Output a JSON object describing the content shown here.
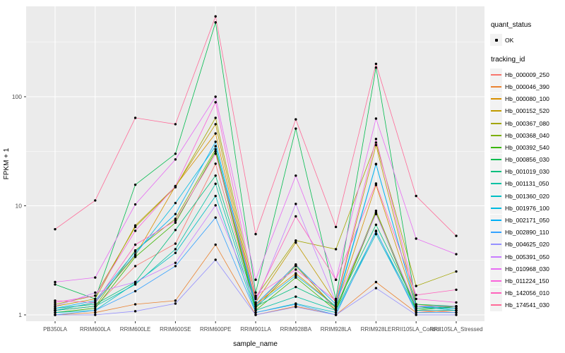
{
  "figure": {
    "y_axis_label": "FPKM + 1",
    "x_axis_label": "sample_name",
    "legend_quant_title": "quant_status",
    "legend_quant_item": "OK",
    "legend_tracking_title": "tracking_id",
    "colors": {
      "panel_bg": "#EBEBEB",
      "grid": "#FFFFFF",
      "tick_text": "#4D4D4D",
      "point": "#000000",
      "legend_key_bg": "#F2F2F2"
    }
  },
  "chart_data": {
    "type": "line",
    "title": "",
    "xlabel": "sample_name",
    "ylabel": "FPKM + 1",
    "y_scale": "log10",
    "ylim": [
      1,
      600
    ],
    "y_ticks": [
      1,
      10,
      100
    ],
    "grid": true,
    "legend_position": "right",
    "marker": "point",
    "marker_legend": {
      "title": "quant_status",
      "items": [
        "OK"
      ]
    },
    "series_legend_title": "tracking_id",
    "categories": [
      "PB350LA",
      "RRIM600LA",
      "RRIM600LE",
      "RRIM600SE",
      "RRIM600PE",
      "RRIM901LA",
      "RRIM928BA",
      "RRIM928LA",
      "RRIM928LE",
      "RRII105LA_Control",
      "RRII105LA_Stressed"
    ],
    "series": [
      {
        "name": "Hb_000009_250",
        "color": "#F8766D",
        "values": [
          1.1,
          1.2,
          2.8,
          4.5,
          24.3,
          1.2,
          2.9,
          1.1,
          8.7,
          1.1,
          1.05
        ]
      },
      {
        "name": "Hb_000046_390",
        "color": "#EA8331",
        "values": [
          1.0,
          1.05,
          1.25,
          1.35,
          4.4,
          1.0,
          1.2,
          1.0,
          2.0,
          1.05,
          1.1
        ]
      },
      {
        "name": "Hb_000080_100",
        "color": "#D89000",
        "values": [
          1.1,
          1.3,
          3.5,
          15.2,
          46.0,
          1.25,
          2.4,
          1.2,
          15.5,
          1.2,
          1.1
        ]
      },
      {
        "name": "Hb_000152_520",
        "color": "#C09B00",
        "values": [
          1.2,
          1.4,
          6.6,
          15.0,
          56.0,
          1.3,
          4.6,
          1.3,
          36.0,
          1.25,
          1.15
        ]
      },
      {
        "name": "Hb_000367_080",
        "color": "#A3A500",
        "values": [
          1.25,
          1.5,
          6.4,
          14.8,
          64.0,
          1.45,
          4.8,
          4.0,
          38.0,
          1.84,
          2.5
        ]
      },
      {
        "name": "Hb_000368_040",
        "color": "#7CAE00",
        "values": [
          1.1,
          1.2,
          3.9,
          7.6,
          33.0,
          1.15,
          2.8,
          1.15,
          9.0,
          1.15,
          1.2
        ]
      },
      {
        "name": "Hb_000392_540",
        "color": "#39B600",
        "values": [
          1.05,
          1.15,
          3.4,
          7.0,
          31.5,
          1.1,
          2.2,
          1.1,
          8.6,
          1.1,
          1.2
        ]
      },
      {
        "name": "Hb_000856_030",
        "color": "#00BB4E",
        "values": [
          1.9,
          1.4,
          15.6,
          30.0,
          480,
          1.6,
          51.0,
          1.4,
          185,
          1.25,
          1.2
        ]
      },
      {
        "name": "Hb_001019_030",
        "color": "#00BF7D",
        "values": [
          1.15,
          1.25,
          2.0,
          6.0,
          18.9,
          1.2,
          1.8,
          1.2,
          6.7,
          1.2,
          1.2
        ]
      },
      {
        "name": "Hb_001131_050",
        "color": "#00C1A3",
        "values": [
          1.1,
          1.2,
          1.9,
          4.0,
          15.9,
          1.1,
          1.47,
          1.1,
          5.8,
          1.15,
          1.15
        ]
      },
      {
        "name": "Hb_001360_020",
        "color": "#00BFC4",
        "values": [
          1.05,
          1.1,
          1.95,
          3.7,
          12.3,
          1.05,
          1.27,
          1.05,
          5.5,
          1.1,
          1.1
        ]
      },
      {
        "name": "Hb_001976_100",
        "color": "#00BAE0",
        "values": [
          1.1,
          1.3,
          3.6,
          10.6,
          35.2,
          1.2,
          2.3,
          1.2,
          24.0,
          1.2,
          1.1
        ]
      },
      {
        "name": "Hb_002171_050",
        "color": "#00B0F6",
        "values": [
          1.15,
          1.35,
          3.8,
          8.4,
          38.6,
          1.25,
          2.85,
          1.25,
          24.2,
          1.2,
          1.15
        ]
      },
      {
        "name": "Hb_002890_110",
        "color": "#35A2FF",
        "values": [
          1.0,
          1.1,
          1.65,
          2.8,
          7.8,
          1.05,
          1.25,
          1.0,
          5.9,
          1.05,
          1.05
        ]
      },
      {
        "name": "Hb_004625_020",
        "color": "#9590FF",
        "values": [
          1.0,
          1.0,
          1.08,
          1.27,
          3.2,
          1.0,
          1.18,
          1.0,
          1.76,
          1.0,
          1.0
        ]
      },
      {
        "name": "Hb_005391_050",
        "color": "#C77CFF",
        "values": [
          1.2,
          1.6,
          2.0,
          3.0,
          10.1,
          1.3,
          10.4,
          1.3,
          8.4,
          1.2,
          1.2
        ]
      },
      {
        "name": "Hb_010968_030",
        "color": "#E76BF3",
        "values": [
          2.0,
          2.2,
          10.3,
          26.6,
          100,
          2.1,
          18.9,
          2.1,
          63.0,
          5.0,
          3.6
        ]
      },
      {
        "name": "Hb_011224_150",
        "color": "#FA62DB",
        "values": [
          1.3,
          1.5,
          5.9,
          15.1,
          89.0,
          1.5,
          2.6,
          1.35,
          41.0,
          1.4,
          1.3
        ]
      },
      {
        "name": "Hb_142056_010",
        "color": "#FF62BC",
        "values": [
          1.35,
          1.3,
          4.4,
          7.3,
          30.0,
          1.4,
          8.0,
          2.1,
          16.0,
          1.52,
          1.7
        ]
      },
      {
        "name": "Hb_174541_030",
        "color": "#FF6A98",
        "values": [
          6.1,
          11.2,
          64.0,
          56.0,
          545,
          5.5,
          62.0,
          6.4,
          200,
          12.3,
          5.3
        ]
      }
    ]
  }
}
